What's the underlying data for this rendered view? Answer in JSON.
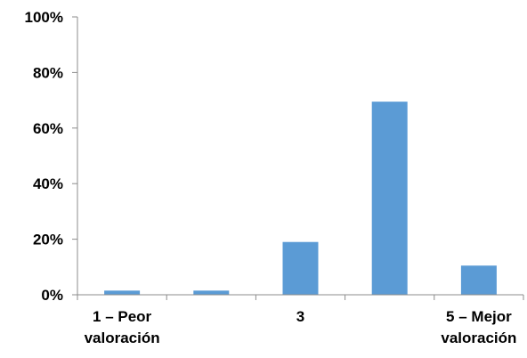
{
  "chart_data": {
    "type": "bar",
    "categories": [
      [
        "1 – Peor",
        "valoración"
      ],
      [
        ""
      ],
      [
        "3"
      ],
      [
        ""
      ],
      [
        "5 – Mejor",
        "valoración"
      ]
    ],
    "values": [
      1.5,
      1.5,
      19,
      69.5,
      10.5
    ],
    "y_ticks": [
      "0%",
      "20%",
      "40%",
      "60%",
      "80%",
      "100%"
    ],
    "ylim": [
      0,
      100
    ],
    "unit": "%",
    "grid": false,
    "legend": "none",
    "title": "",
    "xlabel": "",
    "ylabel": "",
    "bar_color": "#5b9bd5",
    "axis_color": "#8c8c8c"
  }
}
